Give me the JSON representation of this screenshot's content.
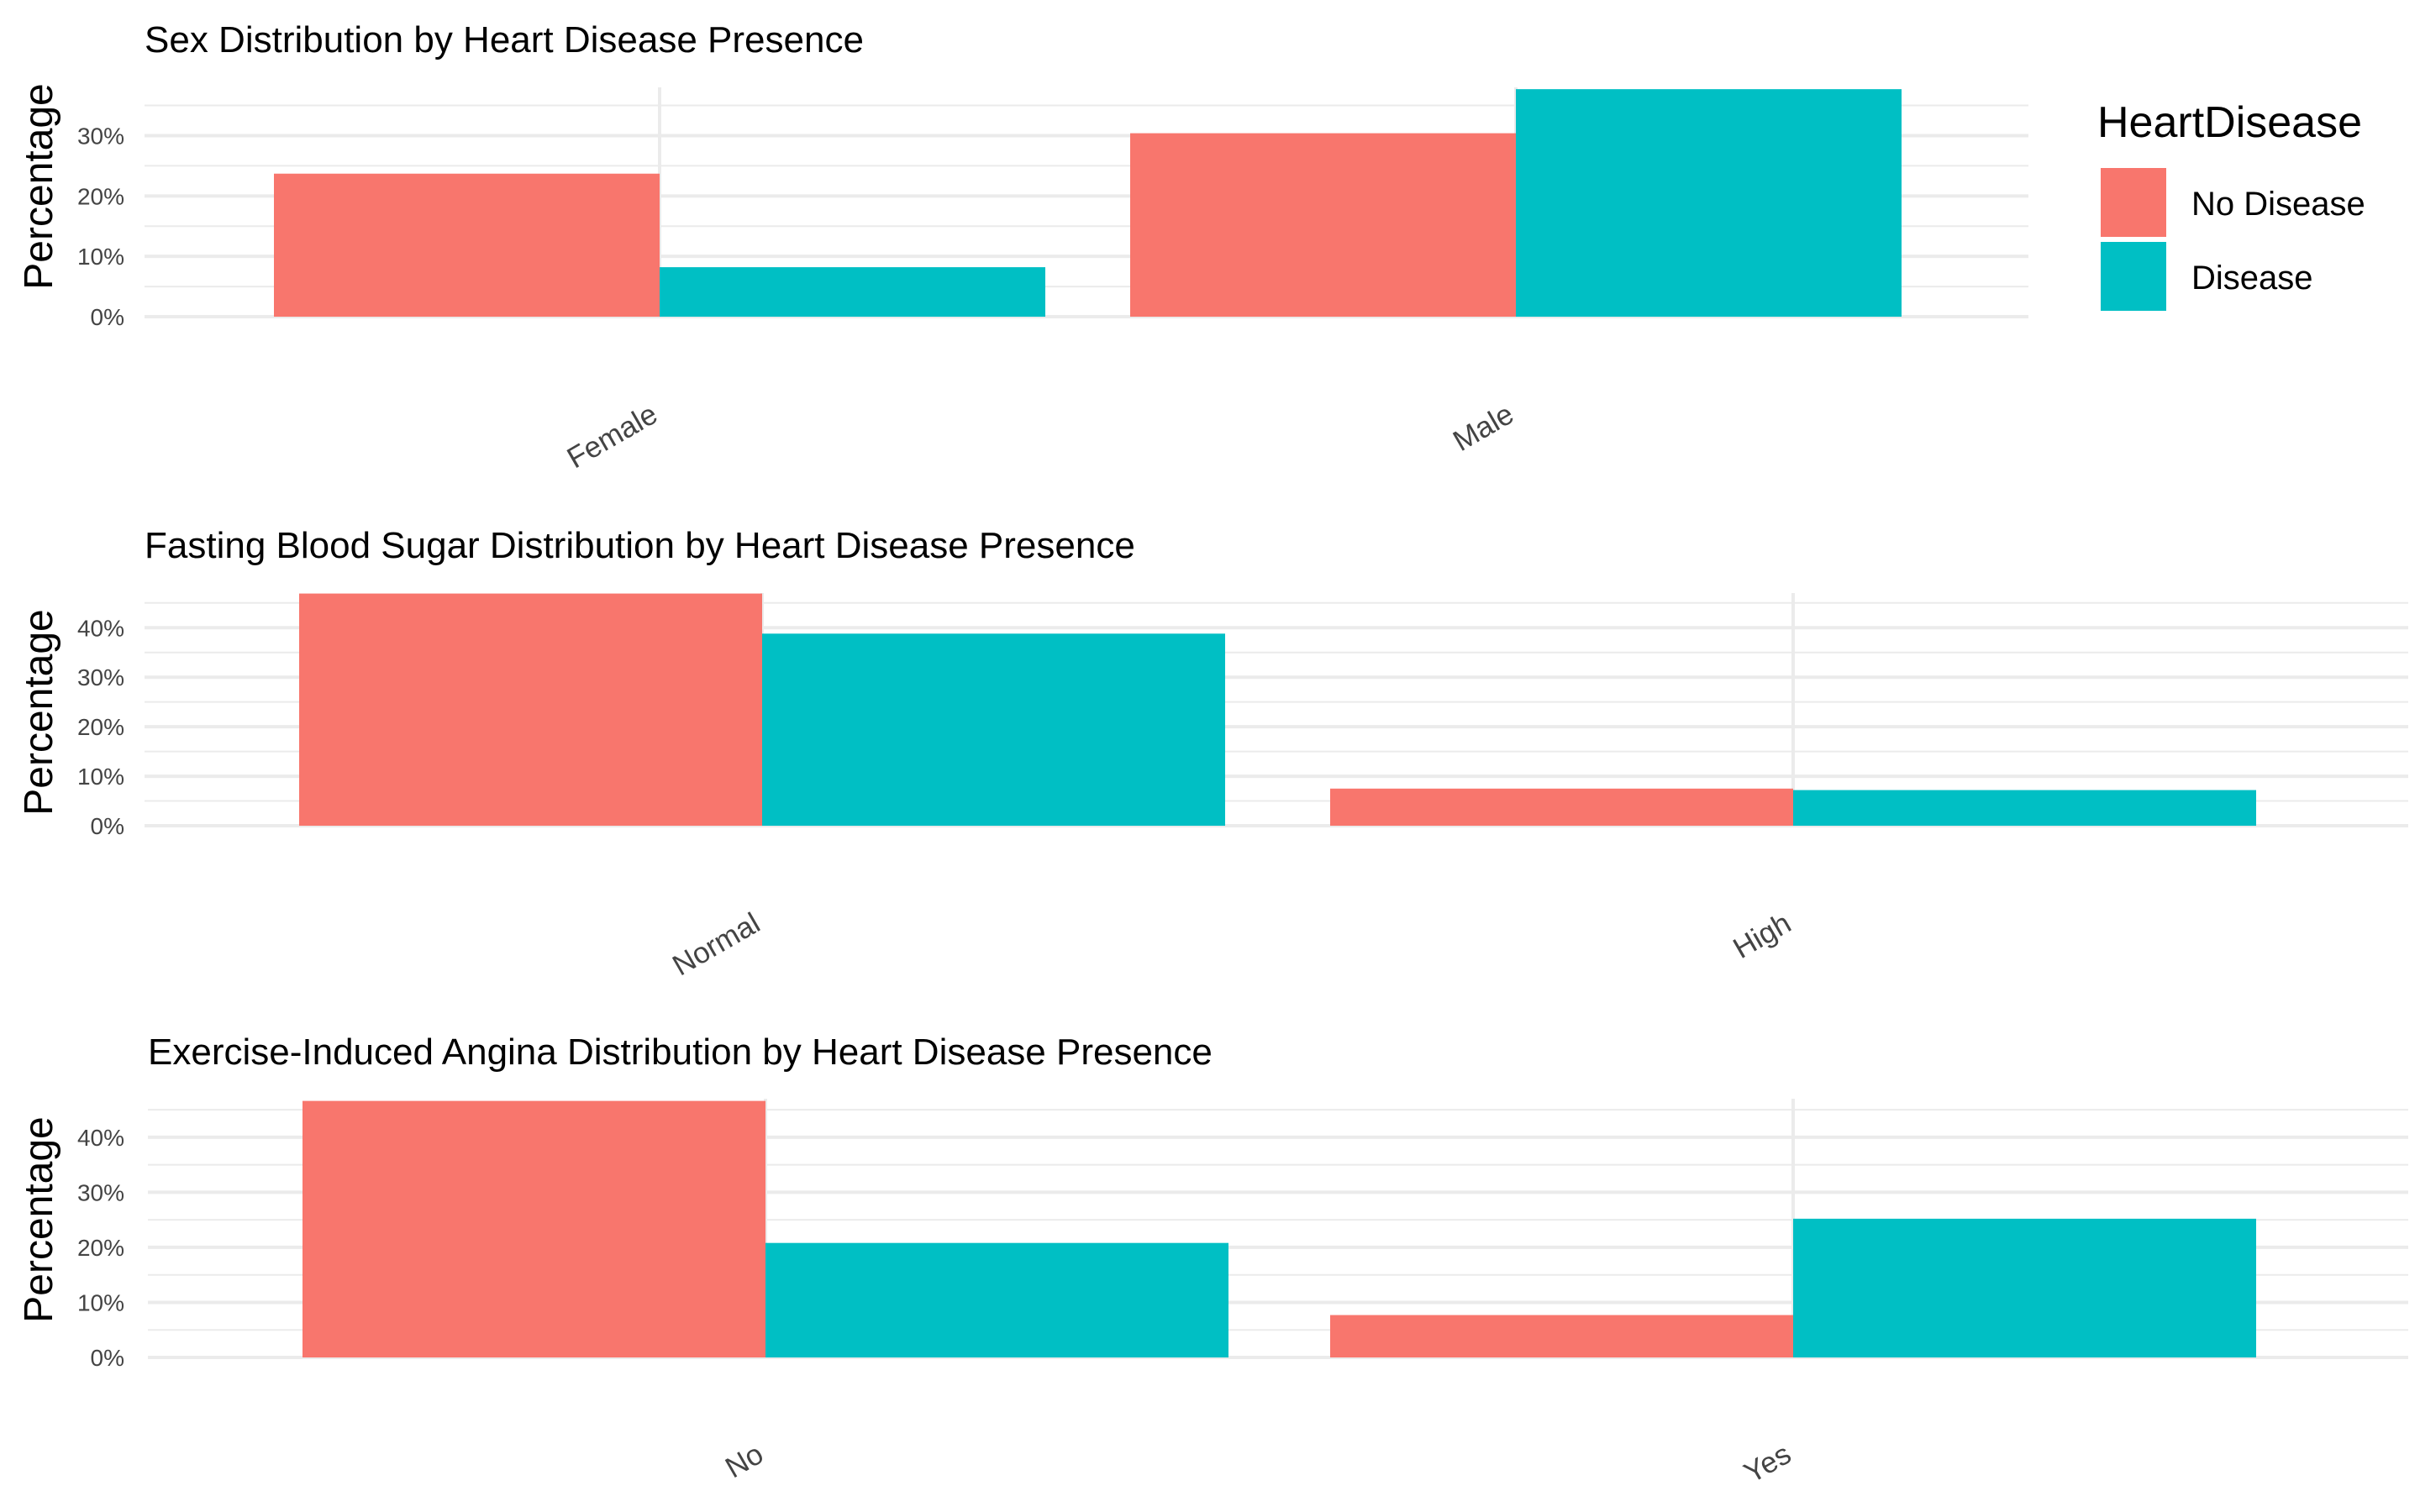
{
  "legend": {
    "title": "HeartDisease",
    "items": [
      {
        "label": "No Disease",
        "color": "#F8766D"
      },
      {
        "label": "Disease",
        "color": "#00BFC4"
      }
    ]
  },
  "chart_data": [
    {
      "type": "bar",
      "title": "Sex Distribution by Heart Disease Presence",
      "xlabel": "",
      "ylabel": "Percentage",
      "categories": [
        "Female",
        "Male"
      ],
      "series": [
        {
          "name": "No Disease",
          "values": [
            23.7,
            30.4
          ]
        },
        {
          "name": "Disease",
          "values": [
            8.2,
            37.7
          ]
        }
      ],
      "ylim": [
        0,
        38
      ],
      "yticks": [
        0,
        10,
        20,
        30
      ],
      "ytick_labels": [
        "0%",
        "10%",
        "20%",
        "30%"
      ],
      "grid": true,
      "legend_position": "right"
    },
    {
      "type": "bar",
      "title": "Fasting Blood Sugar Distribution by Heart Disease Presence",
      "xlabel": "",
      "ylabel": "Percentage",
      "categories": [
        "Normal",
        "High"
      ],
      "series": [
        {
          "name": "No Disease",
          "values": [
            46.9,
            7.5
          ]
        },
        {
          "name": "Disease",
          "values": [
            38.8,
            7.2
          ]
        }
      ],
      "ylim": [
        0,
        47
      ],
      "yticks": [
        0,
        10,
        20,
        30,
        40
      ],
      "ytick_labels": [
        "0%",
        "10%",
        "20%",
        "30%",
        "40%"
      ],
      "grid": true,
      "legend_position": "none"
    },
    {
      "type": "bar",
      "title": "Exercise-Induced Angina Distribution by Heart Disease Presence",
      "xlabel": "",
      "ylabel": "Percentage",
      "categories": [
        "No",
        "Yes"
      ],
      "series": [
        {
          "name": "No Disease",
          "values": [
            46.6,
            7.7
          ]
        },
        {
          "name": "Disease",
          "values": [
            20.8,
            25.2
          ]
        }
      ],
      "ylim": [
        0,
        47
      ],
      "yticks": [
        0,
        10,
        20,
        30,
        40
      ],
      "ytick_labels": [
        "0%",
        "10%",
        "20%",
        "30%",
        "40%"
      ],
      "grid": true,
      "legend_position": "none"
    }
  ]
}
